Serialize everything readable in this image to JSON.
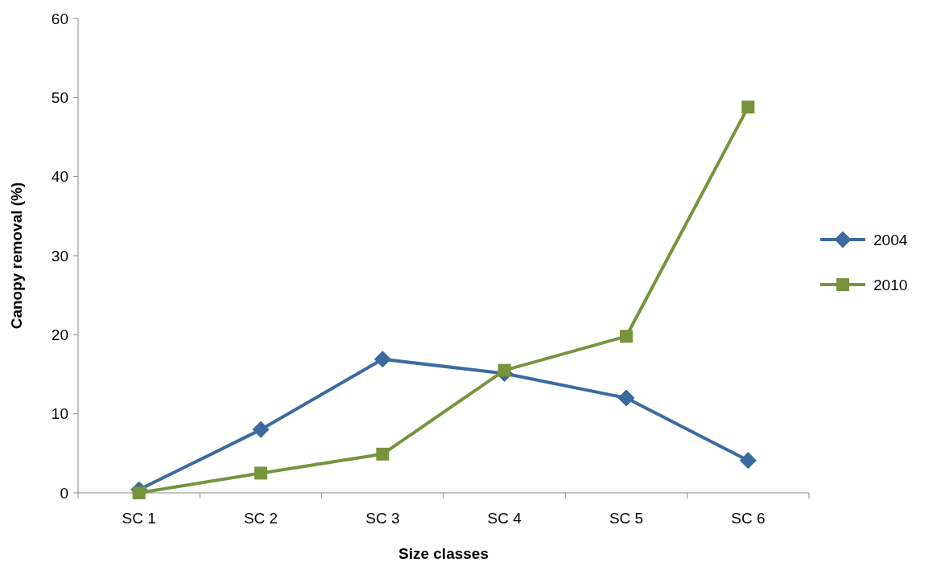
{
  "chart_data": {
    "type": "line",
    "xlabel": "Size classes",
    "ylabel": "Canopy removal (%)",
    "categories": [
      "SC 1",
      "SC 2",
      "SC 3",
      "SC 4",
      "SC 5",
      "SC 6"
    ],
    "series": [
      {
        "name": "2004",
        "color": "#3b6aa0",
        "marker": "diamond",
        "values": [
          0.4,
          8.0,
          16.9,
          15.1,
          12.0,
          4.1
        ]
      },
      {
        "name": "2010",
        "color": "#77933c",
        "marker": "square",
        "values": [
          0,
          2.5,
          4.9,
          15.5,
          19.8,
          48.8
        ]
      }
    ],
    "ylim": [
      0,
      60
    ],
    "yticks": [
      0,
      10,
      20,
      30,
      40,
      50,
      60
    ],
    "legend": "right",
    "grid": false,
    "line_style": "solid"
  }
}
